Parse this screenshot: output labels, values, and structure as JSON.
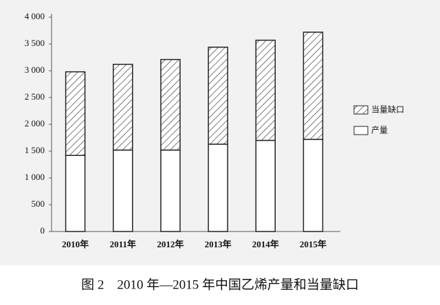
{
  "chart_data": {
    "type": "stacked-bar",
    "title": "图 2　2010 年—2015 年中国乙烯产量和当量缺口",
    "categories": [
      "2010年",
      "2011年",
      "2012年",
      "2013年",
      "2014年",
      "2015年"
    ],
    "series": [
      {
        "name": "产量",
        "color": "#ffffff",
        "hatch": false,
        "values": [
          1420,
          1520,
          1520,
          1630,
          1700,
          1720
        ]
      },
      {
        "name": "当量缺口",
        "color": "#333333",
        "hatch": true,
        "values": [
          1560,
          1600,
          1690,
          1810,
          1870,
          2000
        ]
      }
    ],
    "ylim": [
      0,
      4000
    ],
    "yticks": [
      0,
      500,
      {
        "value": 1000,
        "label": "1 000"
      },
      {
        "value": 1500,
        "label": "1 500"
      },
      {
        "value": 2000,
        "label": "2 000"
      },
      {
        "value": 2500,
        "label": "2 500"
      },
      {
        "value": 3000,
        "label": "3 000"
      },
      {
        "value": 3500,
        "label": "3 500"
      },
      {
        "value": 4000,
        "label": "4 000"
      }
    ],
    "grid": false
  }
}
